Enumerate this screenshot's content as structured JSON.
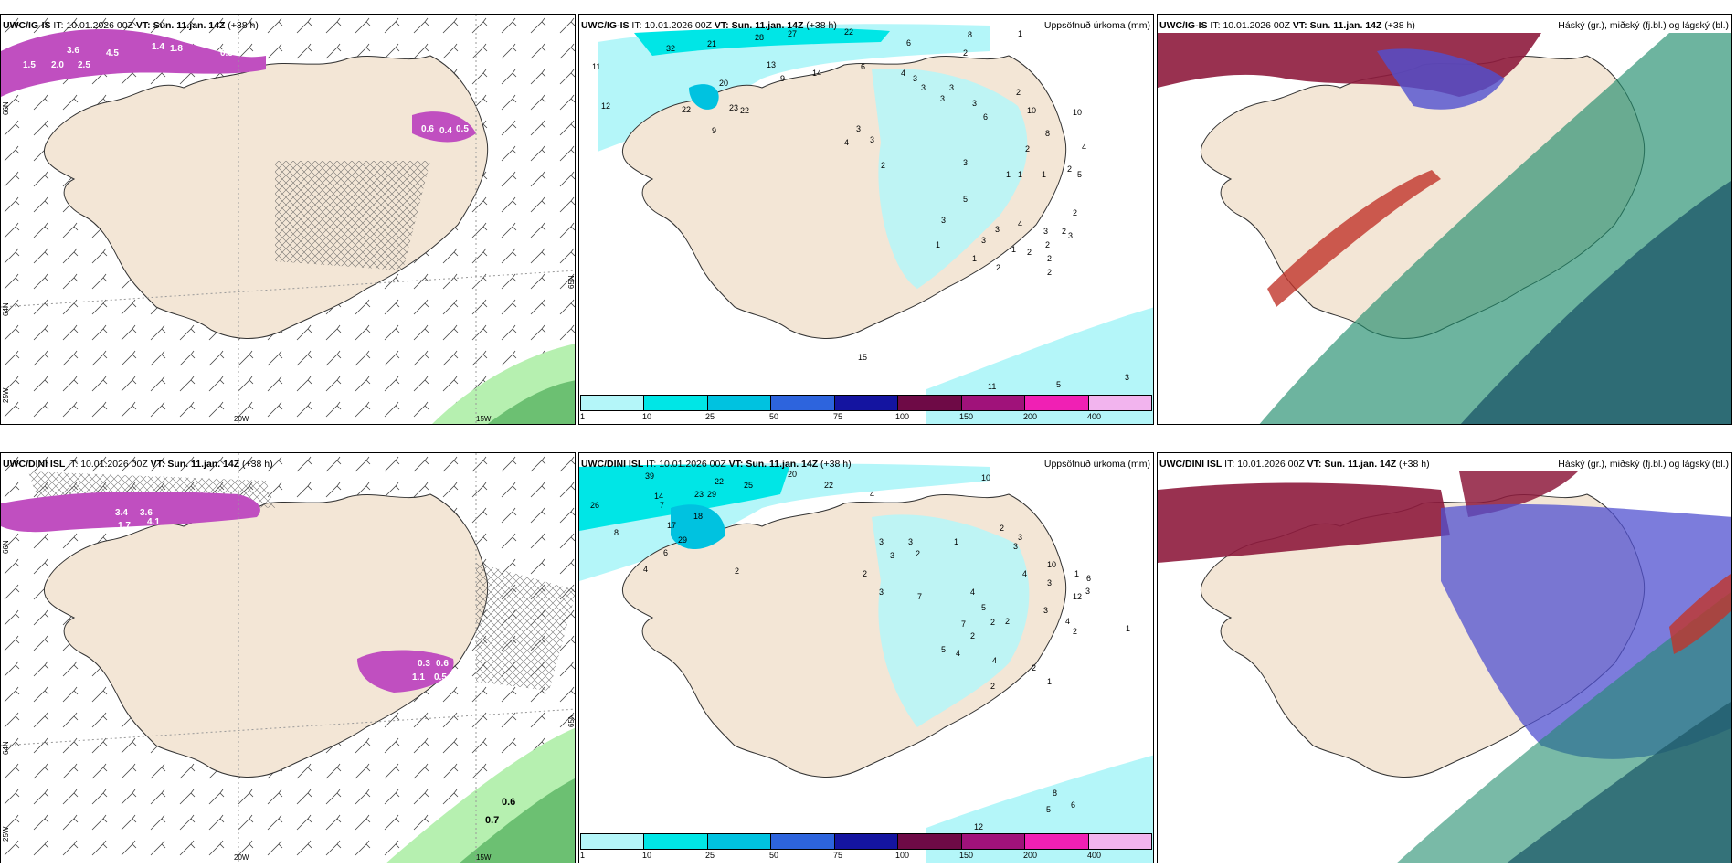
{
  "colors": {
    "land": "#f3e6d6",
    "coast": "#333333",
    "precip_purple": "#c04fc0",
    "snow_green": "#b6f0b0",
    "cb": [
      "#b4f6f9",
      "#00e6e6",
      "#00c2e0",
      "#2d64dd",
      "#1414a0",
      "#6e0a46",
      "#a0127a",
      "#f020b4",
      "#f2b4ee"
    ]
  },
  "colorbar_labels": [
    "1",
    "10",
    "25",
    "50",
    "75",
    "100",
    "150",
    "200",
    "400"
  ],
  "row_top": {
    "left": {
      "model": "UWC/IG-IS",
      "it_label": "IT:",
      "it": "10.01.2026 00Z",
      "vt_label": "VT:",
      "vt": "Sun. 11.jan. 14Z",
      "lead": "(+38 h)",
      "lon_labels": [
        "20W",
        "15W"
      ],
      "lat_labels": [
        "66N",
        "64N",
        "65N",
        "25W"
      ],
      "precip_values": [
        "3.6",
        "4.5",
        "1.5",
        "2.0",
        "2.5",
        "1.4",
        "1.8",
        "0.5",
        "0.6",
        "0.4",
        "0.5"
      ]
    },
    "mid": {
      "model": "UWC/IG-IS",
      "it_label": "IT:",
      "it": "10.01.2026 00Z",
      "vt_label": "VT:",
      "vt": "Sun. 11.jan. 14Z",
      "lead": "(+38 h)",
      "title": "Uppsöfnuð úrkoma (mm)",
      "station_values": [
        "32",
        "21",
        "28",
        "27",
        "22",
        "6",
        "8",
        "1",
        "11",
        "13",
        "9",
        "14",
        "6",
        "4",
        "3",
        "2",
        "12",
        "20",
        "22",
        "23",
        "22",
        "9",
        "3",
        "3",
        "3",
        "6",
        "10",
        "3",
        "2",
        "3",
        "8",
        "3",
        "4",
        "2",
        "3",
        "1",
        "1",
        "1",
        "4",
        "5",
        "5",
        "2",
        "2",
        "3",
        "1",
        "3",
        "2",
        "1",
        "2",
        "4",
        "3",
        "2",
        "2",
        "1",
        "2",
        "2",
        "10",
        "2",
        "3",
        "3",
        "15",
        "11",
        "5",
        "3"
      ]
    },
    "right": {
      "model": "UWC/IG-IS",
      "it_label": "IT:",
      "it": "10.01.2026 00Z",
      "vt_label": "VT:",
      "vt": "Sun. 11.jan. 14Z",
      "lead": "(+38 h)",
      "title": "Háský (gr.), miðský (fj.bl.) og lágský (bl.)"
    }
  },
  "row_bottom": {
    "left": {
      "model": "UWC/DINI ISL",
      "it_label": "IT:",
      "it": "10.01.2026 00Z",
      "vt_label": "VT:",
      "vt": "Sun. 11.jan. 14Z",
      "lead": "(+38 h)",
      "lon_labels": [
        "20W",
        "15W"
      ],
      "lat_labels": [
        "66N",
        "64N",
        "65N",
        "25W"
      ],
      "precip_values": [
        "3.4",
        "3.6",
        "1.7",
        "4.1",
        "0.3",
        "0.6",
        "0.5",
        "1.1",
        "0.6",
        "0.7"
      ]
    },
    "mid": {
      "model": "UWC/DINI ISL",
      "it_label": "IT:",
      "it": "10.01.2026 00Z",
      "vt_label": "VT:",
      "vt": "Sun. 11.jan. 14Z",
      "lead": "(+38 h)",
      "title": "Uppsöfnuð úrkoma (mm)",
      "station_values": [
        "39",
        "14",
        "22",
        "25",
        "20",
        "22",
        "4",
        "10",
        "26",
        "7",
        "23",
        "8",
        "18",
        "29",
        "29",
        "17",
        "4",
        "6",
        "2",
        "2",
        "3",
        "3",
        "3",
        "2",
        "1",
        "2",
        "3",
        "3",
        "7",
        "3",
        "4",
        "10",
        "3",
        "12",
        "4",
        "5",
        "1",
        "6",
        "3",
        "2",
        "2",
        "3",
        "7",
        "2",
        "4",
        "2",
        "4",
        "1",
        "2",
        "8",
        "6",
        "5",
        "12",
        "1",
        "5",
        "4",
        "2"
      ]
    },
    "right": {
      "model": "UWC/DINI ISL",
      "it_label": "IT:",
      "it": "10.01.2026 00Z",
      "vt_label": "VT:",
      "vt": "Sun. 11.jan. 14Z",
      "lead": "(+38 h)",
      "title": "Háský (gr.), miðský (fj.bl.) og lágský (bl.)"
    }
  }
}
